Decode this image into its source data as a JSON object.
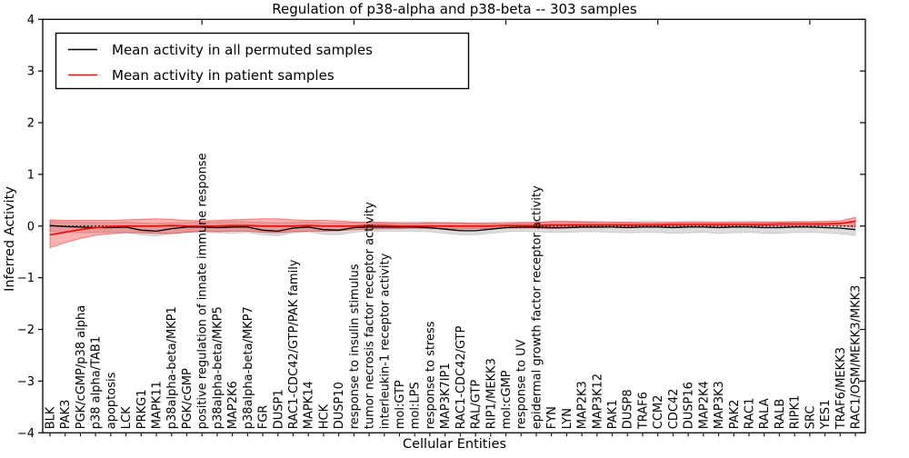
{
  "title": "Regulation of p38-alpha and p38-beta -- 303 samples",
  "chart_data": {
    "type": "line",
    "title": "Regulation of p38-alpha and p38-beta -- 303 samples",
    "xlabel": "Cellular Entities",
    "ylabel": "Inferred Activity",
    "ylim": [
      -4,
      4
    ],
    "grid": false,
    "legend_position": "upper left",
    "zero_reference_line": true,
    "ytick_values": [
      -4,
      -3,
      -2,
      -1,
      0,
      1,
      2,
      3,
      4
    ],
    "ytick_labels": [
      "−4",
      "−3",
      "−2",
      "−1",
      "0",
      "1",
      "2",
      "3",
      "4"
    ],
    "categories": [
      "BLK",
      "PAK3",
      "PGK/cGMP/p38 alpha",
      "p38 alpha/TAB1",
      "apoptosis",
      "LCK",
      "PRKG1",
      "MAPK11",
      "p38alpha-beta/MKP1",
      "PGK/cGMP",
      "positive regulation of innate immune response",
      "p38alpha-beta/MKP5",
      "MAP2K6",
      "p38alpha-beta/MKP7",
      "FGR",
      "DUSP1",
      "RAC1-CDC42/GTP/PAK family",
      "MAPK14",
      "HCK",
      "DUSP10",
      "response to insulin stimulus",
      "tumor necrosis factor receptor activity",
      "interleukin-1 receptor activity",
      "mol:GTP",
      "mol:LPS",
      "response to stress",
      "MAP3K7IP1",
      "RAC1-CDC42/GTP",
      "RAL/GTP",
      "RIP1/MEKK3",
      "mol:cGMP",
      "response to UV",
      "epidermal growth factor receptor activity",
      "FYN",
      "LYN",
      "MAP2K3",
      "MAP3K12",
      "PAK1",
      "DUSP8",
      "TRAF6",
      "CCM2",
      "CDC42",
      "DUSP16",
      "MAP2K4",
      "MAP3K3",
      "PAK2",
      "RAC1",
      "RALA",
      "RALB",
      "RIPK1",
      "SRC",
      "YES1",
      "TRAF6/MEKK3",
      "RAC1/OSM/MEKK3/MKK3"
    ],
    "series": [
      {
        "name": "Mean activity in all permuted samples",
        "color": "#000000",
        "band_color": "#bfbfbf",
        "band_opacity": 0.55,
        "values": [
          0.01,
          -0.01,
          -0.02,
          -0.03,
          -0.03,
          -0.02,
          -0.08,
          -0.1,
          -0.05,
          -0.02,
          -0.02,
          -0.03,
          -0.02,
          -0.02,
          -0.08,
          -0.1,
          -0.04,
          -0.02,
          -0.07,
          -0.08,
          -0.03,
          -0.02,
          -0.02,
          -0.02,
          -0.02,
          -0.03,
          -0.06,
          -0.09,
          -0.09,
          -0.06,
          -0.03,
          -0.02,
          -0.02,
          -0.03,
          -0.03,
          -0.02,
          -0.02,
          -0.02,
          -0.03,
          -0.02,
          -0.02,
          -0.03,
          -0.02,
          -0.02,
          -0.03,
          -0.02,
          -0.02,
          -0.03,
          -0.03,
          -0.02,
          -0.02,
          -0.03,
          -0.04,
          -0.07
        ],
        "band_lower": [
          -0.1,
          -0.12,
          -0.13,
          -0.13,
          -0.12,
          -0.12,
          -0.17,
          -0.19,
          -0.14,
          -0.12,
          -0.12,
          -0.13,
          -0.14,
          -0.12,
          -0.17,
          -0.19,
          -0.13,
          -0.11,
          -0.16,
          -0.17,
          -0.12,
          -0.1,
          -0.1,
          -0.1,
          -0.1,
          -0.11,
          -0.14,
          -0.17,
          -0.17,
          -0.14,
          -0.11,
          -0.1,
          -0.11,
          -0.12,
          -0.12,
          -0.11,
          -0.11,
          -0.12,
          -0.13,
          -0.12,
          -0.12,
          -0.14,
          -0.13,
          -0.12,
          -0.14,
          -0.13,
          -0.12,
          -0.14,
          -0.14,
          -0.12,
          -0.12,
          -0.13,
          -0.15,
          -0.18
        ],
        "band_upper": [
          0.1,
          0.08,
          0.08,
          0.07,
          0.07,
          0.08,
          0.06,
          0.05,
          0.06,
          0.07,
          0.08,
          0.08,
          0.09,
          0.08,
          0.07,
          0.06,
          0.07,
          0.08,
          0.06,
          0.06,
          0.07,
          0.08,
          0.08,
          0.08,
          0.08,
          0.08,
          0.07,
          0.06,
          0.06,
          0.07,
          0.08,
          0.08,
          0.08,
          0.08,
          0.08,
          0.09,
          0.09,
          0.08,
          0.08,
          0.09,
          0.09,
          0.08,
          0.09,
          0.09,
          0.08,
          0.09,
          0.09,
          0.08,
          0.08,
          0.09,
          0.09,
          0.08,
          0.07,
          0.05
        ]
      },
      {
        "name": "Mean activity in patient samples",
        "color": "#ff0000",
        "band_color": "#ff0000",
        "band_opacity": 0.3,
        "values": [
          -0.17,
          -0.12,
          -0.07,
          -0.03,
          -0.01,
          0,
          0,
          0,
          0.01,
          0,
          0,
          0,
          0.01,
          0.01,
          0,
          0,
          0,
          0.01,
          0,
          0,
          0,
          0.01,
          0.01,
          0,
          0,
          0,
          0,
          0,
          0,
          0,
          0.01,
          0.01,
          0.01,
          0.02,
          0.02,
          0.02,
          0.02,
          0.02,
          0.02,
          0.02,
          0.02,
          0.03,
          0.03,
          0.03,
          0.03,
          0.03,
          0.03,
          0.03,
          0.04,
          0.04,
          0.04,
          0.04,
          0.05,
          0.09
        ],
        "band_lower": [
          -0.42,
          -0.32,
          -0.24,
          -0.18,
          -0.15,
          -0.13,
          -0.13,
          -0.14,
          -0.15,
          -0.12,
          -0.1,
          -0.11,
          -0.1,
          -0.1,
          -0.12,
          -0.13,
          -0.11,
          -0.1,
          -0.1,
          -0.09,
          -0.07,
          -0.06,
          -0.05,
          -0.05,
          -0.04,
          -0.05,
          -0.05,
          -0.06,
          -0.05,
          -0.05,
          -0.04,
          -0.04,
          -0.04,
          -0.05,
          -0.04,
          -0.03,
          -0.03,
          -0.02,
          -0.02,
          -0.02,
          -0.02,
          -0.01,
          -0.01,
          -0.01,
          -0.01,
          -0.01,
          -0.01,
          0,
          0,
          0,
          0.01,
          0.01,
          0.01,
          -0.02
        ],
        "band_upper": [
          0.12,
          0.11,
          0.11,
          0.11,
          0.11,
          0.12,
          0.13,
          0.14,
          0.13,
          0.11,
          0.1,
          0.11,
          0.12,
          0.13,
          0.14,
          0.14,
          0.12,
          0.11,
          0.11,
          0.1,
          0.08,
          0.07,
          0.06,
          0.05,
          0.05,
          0.06,
          0.06,
          0.06,
          0.05,
          0.05,
          0.05,
          0.06,
          0.07,
          0.09,
          0.09,
          0.08,
          0.07,
          0.07,
          0.07,
          0.06,
          0.06,
          0.07,
          0.07,
          0.07,
          0.07,
          0.07,
          0.07,
          0.08,
          0.08,
          0.08,
          0.08,
          0.09,
          0.1,
          0.17
        ]
      }
    ]
  }
}
